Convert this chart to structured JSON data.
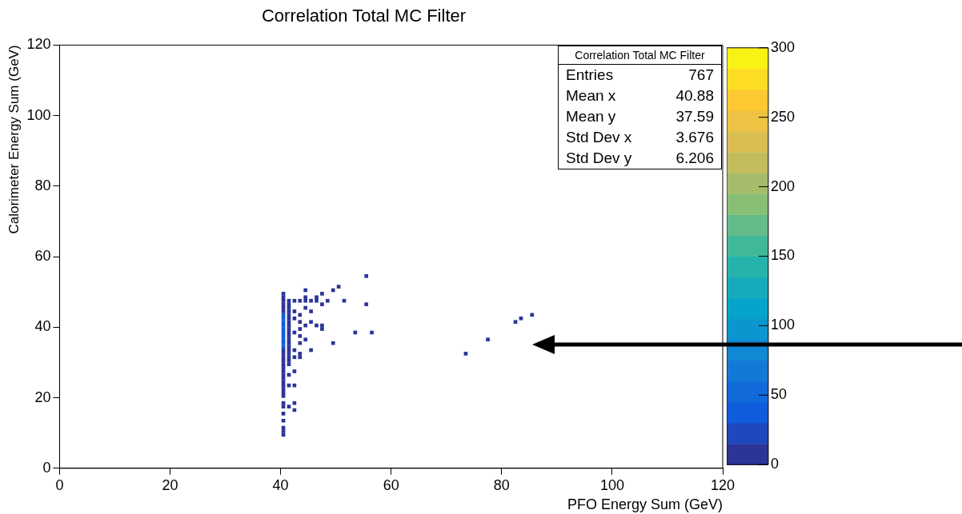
{
  "chart_data": {
    "type": "scatter",
    "title": "Correlation Total MC Filter",
    "xlabel": "PFO Energy Sum (GeV)",
    "ylabel": "Calorimeter Energy Sum (GeV)",
    "series": [
      {
        "color": "#2d3498",
        "x": [
          40.5,
          40.5,
          40.5,
          40.5,
          40.5,
          40.5,
          40.5,
          40.5,
          40.5,
          40.5,
          40.5,
          40.5,
          40.5,
          40.5,
          40.5,
          40.5,
          40.5,
          40.5,
          40.5,
          40.5,
          40.5,
          40.5,
          40.5,
          40.5,
          40.5,
          40.5,
          40.5,
          41.5,
          41.5,
          41.5,
          41.5,
          41.5,
          41.5,
          41.5,
          41.5,
          41.5,
          41.5,
          41.5,
          41.5,
          41.5,
          41.5,
          41.5,
          41.5,
          41.5,
          41.5,
          41.5,
          41.5,
          41.5,
          41.5,
          55.5,
          50.5,
          49.5,
          44.5,
          47.5,
          51.5,
          55.5,
          48.5,
          44.5,
          46.5,
          42.5,
          43.5,
          44.5,
          45.5,
          46.5,
          47.5,
          44.5,
          42.5,
          45.5,
          43.5,
          42.5,
          43.5,
          44.5,
          45.5,
          46.5,
          47.5,
          47.5,
          43.5,
          42.5,
          43.5,
          44.5,
          53.5,
          56.5,
          43.5,
          49.5,
          42.5,
          45.5,
          43.5,
          42.5,
          43.5,
          42.5,
          42.5,
          42.5,
          42.5,
          85.5,
          83.5,
          82.5,
          77.5,
          73.5
        ],
        "values": [
          9.5,
          10.5,
          11.5,
          13.5,
          15.5,
          17.5,
          18.5,
          20.5,
          21.5,
          22.5,
          23.5,
          24.5,
          25.5,
          26.5,
          27.5,
          28.5,
          29.5,
          30.5,
          31.5,
          32.5,
          33.5,
          44.5,
          45.5,
          46.5,
          47.5,
          48.5,
          49.5,
          17.5,
          23.5,
          26.5,
          29.5,
          30.5,
          31.5,
          32.5,
          33.5,
          34.5,
          35.5,
          36.5,
          37.5,
          38.5,
          39.5,
          40.5,
          41.5,
          42.5,
          43.5,
          44.5,
          45.5,
          46.5,
          47.5,
          54.5,
          51.5,
          50.5,
          50.5,
          49.5,
          47.5,
          46.5,
          47.5,
          48.5,
          48.5,
          47.5,
          47.5,
          47.5,
          47.5,
          47.5,
          46.5,
          45.5,
          44.5,
          44.5,
          43.5,
          42.5,
          41.5,
          40.5,
          41.5,
          40.5,
          40.5,
          39.5,
          39.5,
          38.5,
          37.5,
          36.5,
          38.5,
          38.5,
          35.5,
          35.5,
          33.5,
          33.5,
          32.5,
          31.5,
          31.5,
          27.5,
          23.5,
          18.5,
          16.5,
          43.5,
          42.5,
          41.5,
          36.5,
          32.5
        ]
      },
      {
        "color": "#0f5cdd",
        "x": [
          40.5,
          40.5,
          40.5,
          40.5,
          40.5,
          40.5,
          40.5,
          40.5,
          40.5,
          40.5
        ],
        "values": [
          34.5,
          35.5,
          36.5,
          37.5,
          38.5,
          39.5,
          40.5,
          41.5,
          42.5,
          43.5
        ]
      }
    ],
    "marker": "square",
    "xlim": [
      0,
      120
    ],
    "xticks": [
      0,
      20,
      40,
      60,
      80,
      100,
      120
    ],
    "ylim": [
      0,
      120
    ],
    "yticks": [
      0,
      20,
      40,
      60,
      80,
      100,
      120
    ],
    "clim": [
      0,
      300
    ],
    "cticks": [
      0,
      50,
      100,
      150,
      200,
      250,
      300
    ],
    "annotations": [
      "Correlation Total MC Filter",
      "Entries 767",
      "Mean x 40.88",
      "Mean y 37.59",
      "Std Dev x 3.676",
      "Std Dev y 6.206"
    ]
  }
}
